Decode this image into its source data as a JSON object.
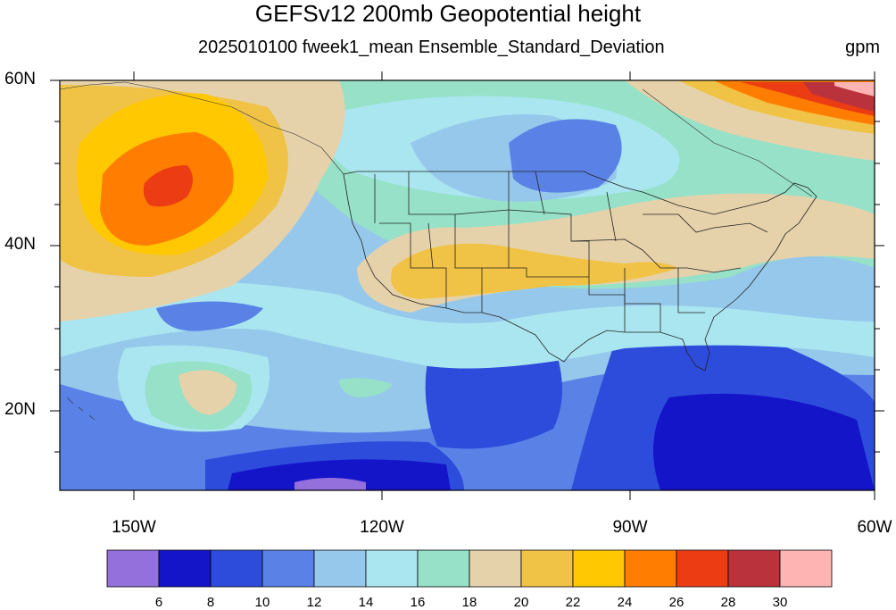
{
  "map": {
    "title": "GEFSv12 200mb Geopotential height",
    "subtitle": "2025010100 fweek1_mean Ensemble_Standard_Deviation",
    "units": "gpm",
    "lat_labels": [
      "60N",
      "40N",
      "20N"
    ],
    "lon_labels": [
      "150W",
      "120W",
      "90W",
      "60W"
    ],
    "extent": {
      "lon_min": -159,
      "lon_max": -60,
      "lat_min": 10,
      "lat_max": 60
    }
  },
  "colorbar": {
    "labels": [
      "6",
      "8",
      "10",
      "12",
      "14",
      "16",
      "18",
      "20",
      "22",
      "24",
      "26",
      "28",
      "30"
    ],
    "colors": [
      "#9370db",
      "#1414c8",
      "#2d4cdc",
      "#5a82e6",
      "#96c8eb",
      "#aae6f0",
      "#96e1c8",
      "#e6d2aa",
      "#f0c346",
      "#ffc800",
      "#ff7d00",
      "#eb3c14",
      "#b9323c",
      "#ffb4b4"
    ]
  }
}
